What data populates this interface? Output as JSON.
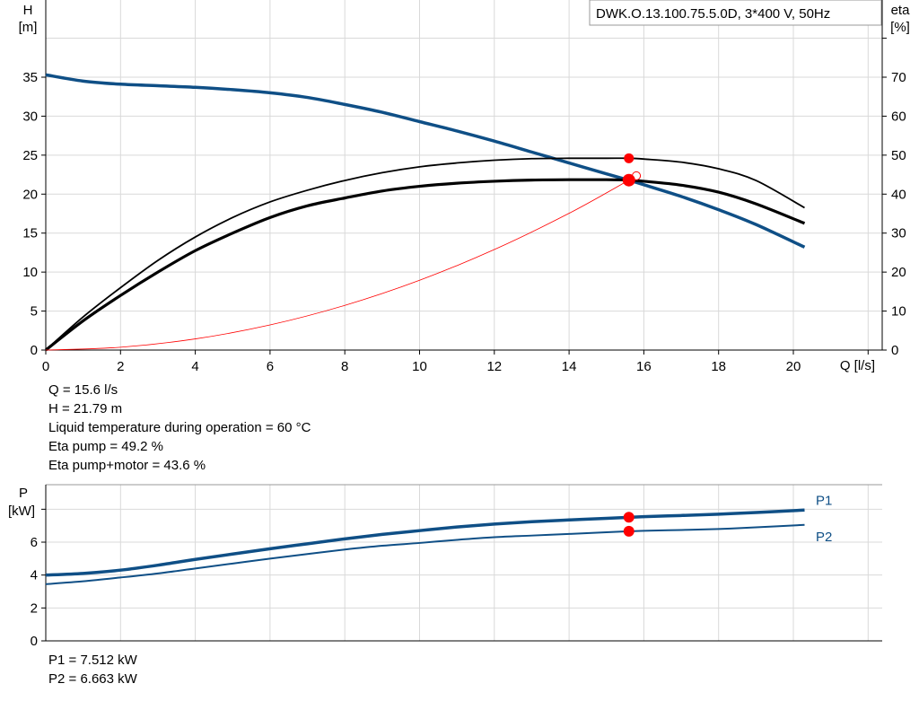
{
  "colors": {
    "pump_curve": "#0f4f86",
    "eta": "#000000",
    "system": "#ff0000",
    "duty_point": "#ff0000"
  },
  "chart_data": [
    {
      "type": "line",
      "title": "DWK.O.13.100.75.5.0D, 3*400 V, 50Hz",
      "xlabel": "Q [l/s]",
      "ylabel_left": [
        "H",
        "[m]"
      ],
      "ylabel_right": [
        "eta",
        "[%]"
      ],
      "xlim": [
        0,
        22.4
      ],
      "ylim": [
        0,
        40
      ],
      "ylim_right": [
        0,
        80
      ],
      "grid": true,
      "x_ticks": [
        0,
        2,
        4,
        6,
        8,
        10,
        12,
        14,
        16,
        18,
        20
      ],
      "y_ticks": [
        0,
        5,
        10,
        15,
        20,
        25,
        30,
        35
      ],
      "y_ticks_right": [
        0,
        10,
        20,
        30,
        40,
        50,
        60,
        70
      ],
      "series": [
        {
          "id": "H",
          "axis": "left",
          "x": [
            0,
            1,
            2,
            3,
            4,
            5,
            6,
            7,
            8,
            9,
            10,
            11,
            12,
            13,
            14,
            15,
            15.6,
            16,
            17,
            18,
            19,
            20.3
          ],
          "y": [
            35.3,
            34.5,
            34.1,
            33.9,
            33.7,
            33.4,
            33.0,
            32.4,
            31.5,
            30.5,
            29.3,
            28.1,
            26.8,
            25.4,
            24.0,
            22.6,
            21.79,
            21.2,
            19.7,
            18.0,
            16.1,
            13.2
          ]
        },
        {
          "id": "eta_pump",
          "axis": "right",
          "x": [
            0,
            1,
            2,
            3,
            4,
            5,
            6,
            7,
            8,
            9,
            10,
            11,
            12,
            13,
            14,
            15,
            15.6,
            16,
            17,
            18,
            19,
            20.3
          ],
          "y": [
            0,
            8.5,
            16,
            23,
            29,
            34,
            38,
            41,
            43.5,
            45.5,
            47,
            48,
            48.7,
            49.1,
            49.2,
            49.2,
            49.2,
            49,
            48.2,
            46.5,
            43.5,
            36.5
          ]
        },
        {
          "id": "eta_pump_motor",
          "axis": "right",
          "x": [
            0,
            1,
            2,
            3,
            4,
            5,
            6,
            7,
            8,
            9,
            10,
            11,
            12,
            13,
            14,
            15,
            15.6,
            16,
            17,
            18,
            19,
            20.3
          ],
          "y": [
            0,
            7.5,
            14,
            20,
            25.5,
            30,
            34,
            37,
            39,
            40.8,
            42,
            42.8,
            43.3,
            43.6,
            43.7,
            43.7,
            43.6,
            43.3,
            42.3,
            40.5,
            37.5,
            32.5
          ]
        },
        {
          "id": "system",
          "axis": "left",
          "x": [
            0,
            2,
            4,
            6,
            8,
            10,
            12,
            14,
            15.6,
            15.8
          ],
          "y": [
            0,
            0.36,
            1.43,
            3.22,
            5.73,
            8.95,
            12.89,
            17.54,
            21.79,
            22.35
          ]
        }
      ],
      "duty_point": {
        "Q": 15.6,
        "H": 21.79,
        "eta_pump": 49.2,
        "eta_pump_motor": 43.6
      }
    },
    {
      "type": "line",
      "ylabel": [
        "P",
        "[kW]"
      ],
      "xlim": [
        0,
        22.4
      ],
      "ylim": [
        0,
        9.5
      ],
      "grid": true,
      "y_ticks": [
        0,
        2,
        4,
        6
      ],
      "series": [
        {
          "name": "P1",
          "x": [
            0,
            1,
            2,
            3,
            4,
            5,
            6,
            7,
            8,
            9,
            10,
            11,
            12,
            13,
            14,
            15,
            15.6,
            16,
            17,
            18,
            19,
            20.3
          ],
          "y": [
            4.0,
            4.1,
            4.3,
            4.6,
            4.95,
            5.28,
            5.6,
            5.9,
            6.2,
            6.47,
            6.7,
            6.92,
            7.1,
            7.24,
            7.35,
            7.45,
            7.51,
            7.55,
            7.62,
            7.7,
            7.8,
            7.95
          ]
        },
        {
          "name": "P2",
          "x": [
            0,
            1,
            2,
            3,
            4,
            5,
            6,
            7,
            8,
            9,
            10,
            11,
            12,
            13,
            14,
            15,
            15.6,
            16,
            17,
            18,
            19,
            20.3
          ],
          "y": [
            3.45,
            3.62,
            3.85,
            4.1,
            4.4,
            4.7,
            5.0,
            5.28,
            5.55,
            5.78,
            5.95,
            6.14,
            6.3,
            6.4,
            6.5,
            6.6,
            6.66,
            6.69,
            6.74,
            6.8,
            6.9,
            7.05
          ]
        }
      ],
      "duty_point": {
        "Q": 15.6,
        "P1": 7.512,
        "P2": 6.663
      }
    }
  ],
  "readout": {
    "lines": [
      "Q = 15.6 l/s",
      "H = 21.79 m",
      "Liquid temperature during operation = 60 °C",
      "Eta pump = 49.2 %",
      "Eta pump+motor = 43.6 %"
    ],
    "power_lines": [
      "P1 = 7.512 kW",
      "P2 = 6.663 kW"
    ]
  }
}
